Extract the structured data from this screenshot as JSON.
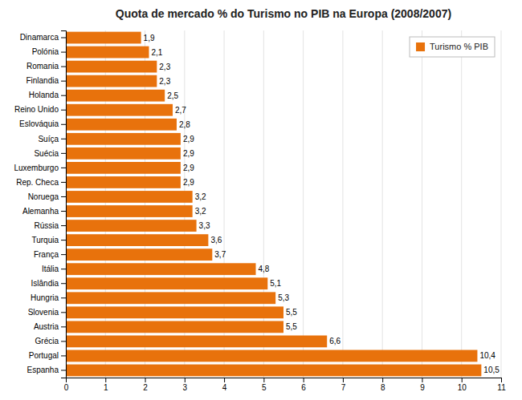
{
  "chart_data": {
    "type": "bar",
    "orientation": "horizontal",
    "title": "Quota de mercado % do Turismo no PIB na Europa (2008/2007)",
    "categories": [
      "Espanha",
      "Portugal",
      "Grécia",
      "Austria",
      "Slovenia",
      "Hungria",
      "Islândia",
      "Itália",
      "França",
      "Turquia",
      "Rússia",
      "Alemanha",
      "Noruega",
      "Rep. Checa",
      "Luxemburgo",
      "Suécia",
      "Suíça",
      "Eslováquia",
      "Reino Unido",
      "Holanda",
      "Finlandia",
      "Romania",
      "Polónia",
      "Dinamarca"
    ],
    "series": [
      {
        "name": "Turismo % PIB",
        "color": "#E8720C",
        "values": [
          10.5,
          10.4,
          6.6,
          5.5,
          5.5,
          5.3,
          5.1,
          4.8,
          3.7,
          3.6,
          3.3,
          3.2,
          3.2,
          2.9,
          2.9,
          2.9,
          2.9,
          2.8,
          2.7,
          2.5,
          2.3,
          2.3,
          2.1,
          1.9
        ],
        "value_labels": [
          "10,5",
          "10,4",
          "6,6",
          "5,5",
          "5,5",
          "5,3",
          "5,1",
          "4,8",
          "3,7",
          "3,6",
          "3,3",
          "3,2",
          "3,2",
          "2,9",
          "2,9",
          "2,9",
          "2,9",
          "2,8",
          "2,7",
          "2,5",
          "2,3",
          "2,3",
          "2,1",
          "1,9"
        ]
      }
    ],
    "xlim": [
      0,
      11
    ],
    "xticks": [
      0,
      1,
      2,
      3,
      4,
      5,
      6,
      7,
      8,
      9,
      10,
      11
    ],
    "grid": true,
    "legend": "upper right"
  }
}
